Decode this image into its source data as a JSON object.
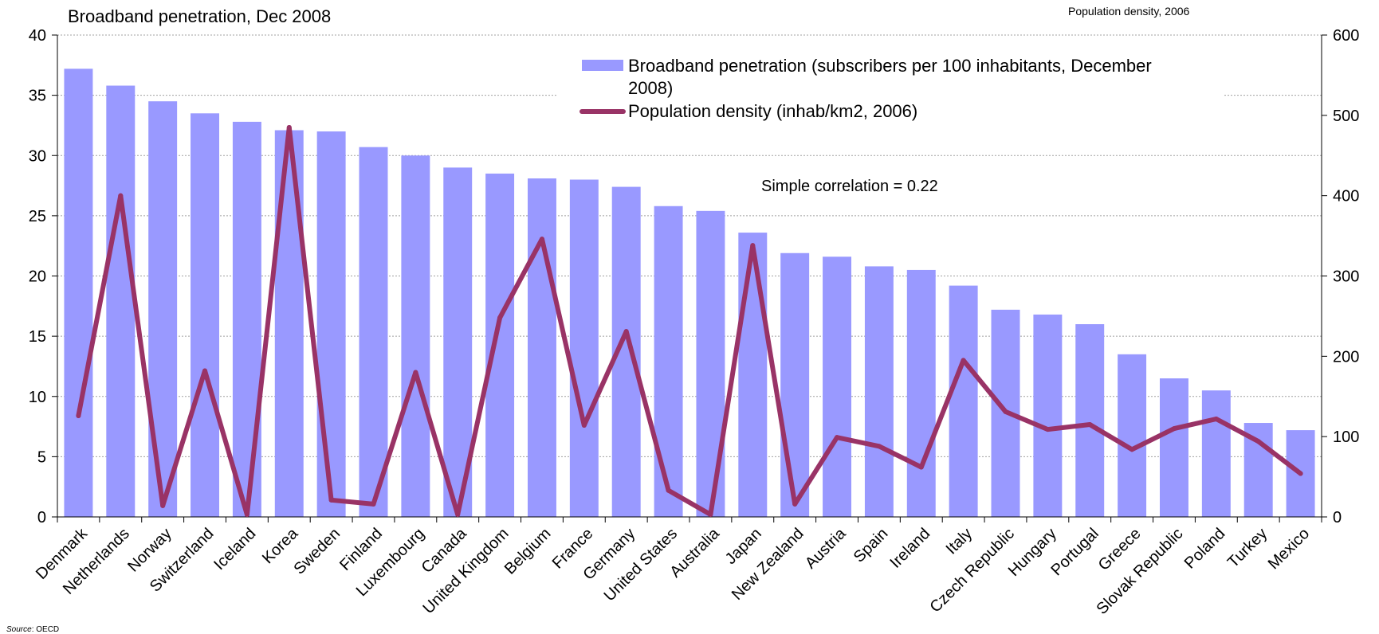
{
  "chart_data": {
    "type": "bar",
    "title": "Broadband penetration, Dec 2008",
    "right_axis_title": "Population density, 2006",
    "annotation": "Simple correlation = 0.22",
    "source_label": "Source",
    "source_value": ": OECD",
    "categories": [
      "Denmark",
      "Netherlands",
      "Norway",
      "Switzerland",
      "Iceland",
      "Korea",
      "Sweden",
      "Finland",
      "Luxembourg",
      "Canada",
      "United Kingdom",
      "Belgium",
      "France",
      "Germany",
      "United States",
      "Australia",
      "Japan",
      "New Zealand",
      "Austria",
      "Spain",
      "Ireland",
      "Italy",
      "Czech Republic",
      "Hungary",
      "Portugal",
      "Greece",
      "Slovak Republic",
      "Poland",
      "Turkey",
      "Mexico"
    ],
    "series": [
      {
        "name": "Broadband penetration (subscribers per 100 inhabitants, December 2008)",
        "type": "bar",
        "axis": "left",
        "color": "#9999FF",
        "values": [
          37.2,
          35.8,
          34.5,
          33.5,
          32.8,
          32.1,
          32.0,
          30.7,
          30.0,
          29.0,
          28.5,
          28.1,
          28.0,
          27.4,
          25.8,
          25.4,
          23.6,
          21.9,
          21.6,
          20.8,
          20.5,
          19.2,
          17.2,
          16.8,
          16.0,
          13.5,
          11.5,
          10.5,
          7.8,
          7.2
        ]
      },
      {
        "name": "Population density (inhab/km2, 2006)",
        "type": "line",
        "axis": "right",
        "color": "#993366",
        "values": [
          126,
          400,
          14,
          182,
          3,
          485,
          21,
          16,
          180,
          3,
          248,
          346,
          114,
          231,
          33,
          3,
          338,
          16,
          99,
          88,
          62,
          195,
          131,
          109,
          115,
          84,
          110,
          122,
          94,
          54
        ]
      }
    ],
    "legend_lines": [
      [
        "Broadband penetration (subscribers per 100 inhabitants, December",
        "2008)"
      ],
      [
        "Population density (inhab/km2, 2006)"
      ]
    ],
    "ylim": [
      0,
      40
    ],
    "yticks": [
      0,
      5,
      10,
      15,
      20,
      25,
      30,
      35,
      40
    ],
    "y2lim": [
      0,
      600
    ],
    "y2ticks": [
      0,
      100,
      200,
      300,
      400,
      500,
      600
    ],
    "xlabel": "",
    "ylabel": "",
    "grid": true,
    "legend_position": "top-right"
  }
}
